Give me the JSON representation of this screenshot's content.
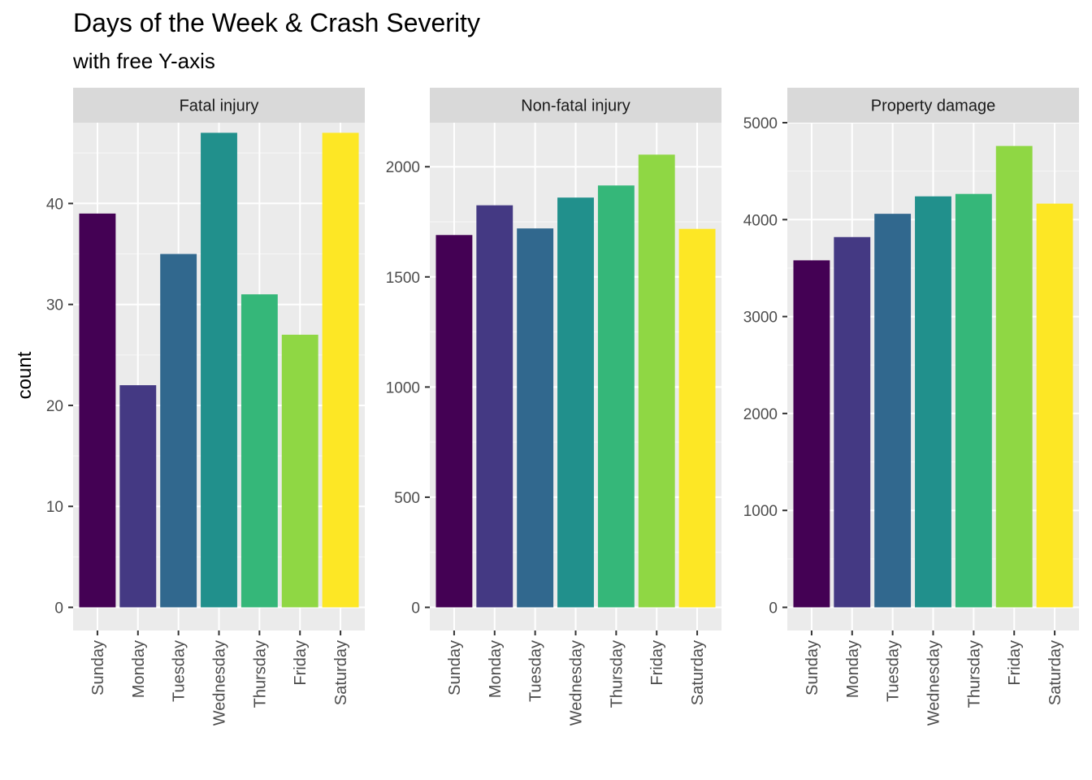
{
  "chart_data": {
    "type": "bar",
    "title": "Days of the Week & Crash Severity",
    "subtitle": "with free Y-axis",
    "ylabel": "count",
    "xlabel": "",
    "categories": [
      "Sunday",
      "Monday",
      "Tuesday",
      "Wednesday",
      "Thursday",
      "Friday",
      "Saturday"
    ],
    "colors": [
      "#440154",
      "#443983",
      "#31688E",
      "#21908C",
      "#35B779",
      "#8FD744",
      "#FDE725"
    ],
    "grid": true,
    "legend": "none",
    "facets": [
      {
        "name": "Fatal injury",
        "ylim": [
          0,
          48
        ],
        "ticks": [
          0,
          10,
          20,
          30,
          40
        ],
        "values": [
          39,
          22,
          35,
          47,
          31,
          27,
          47
        ]
      },
      {
        "name": "Non-fatal injury",
        "ylim": [
          0,
          2200
        ],
        "ticks": [
          0,
          500,
          1000,
          1500,
          2000
        ],
        "values": [
          1690,
          1825,
          1720,
          1860,
          1915,
          2055,
          1718
        ]
      },
      {
        "name": "Property damage",
        "ylim": [
          0,
          5000
        ],
        "ticks": [
          0,
          1000,
          2000,
          3000,
          4000,
          5000
        ],
        "values": [
          3580,
          3820,
          4060,
          4240,
          4265,
          4760,
          4165
        ]
      }
    ]
  }
}
